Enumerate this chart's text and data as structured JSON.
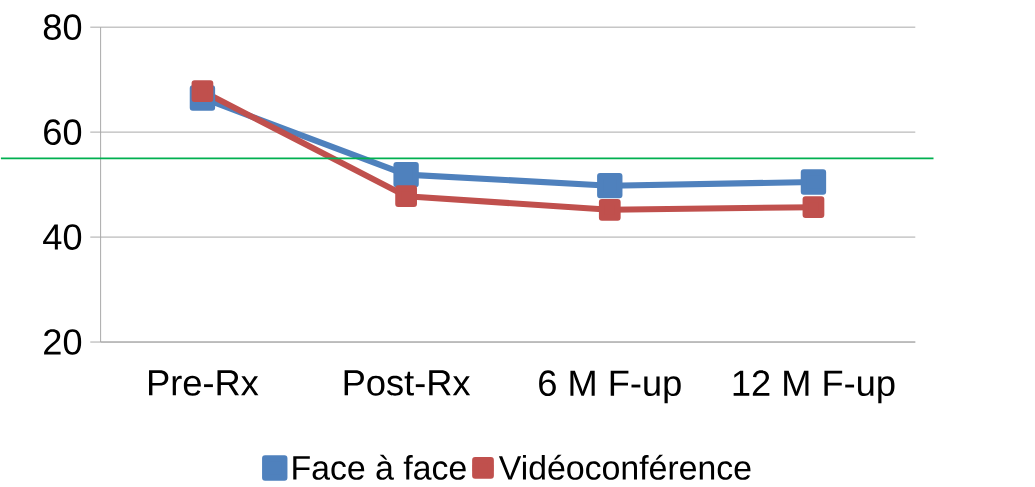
{
  "chart_data": {
    "type": "line",
    "categories": [
      "Pre-Rx",
      "Post-Rx",
      "6 M F-up",
      "12 M F-up"
    ],
    "series": [
      {
        "name": "Face à face",
        "color": "#4f81bd",
        "values": [
          66.5,
          51.9,
          49.8,
          50.5
        ]
      },
      {
        "name": "Vidéoconférence",
        "color": "#c0504d",
        "values": [
          67.8,
          47.8,
          45.2,
          45.7
        ]
      }
    ],
    "ylim": [
      20,
      80
    ],
    "yticks": [
      20,
      40,
      60,
      80
    ],
    "grid": "y",
    "legend": "bottom",
    "marker": "square",
    "line_style": "solid",
    "ref_lines": [
      {
        "axis": "y",
        "value": 55,
        "color": "#00b050"
      }
    ]
  }
}
